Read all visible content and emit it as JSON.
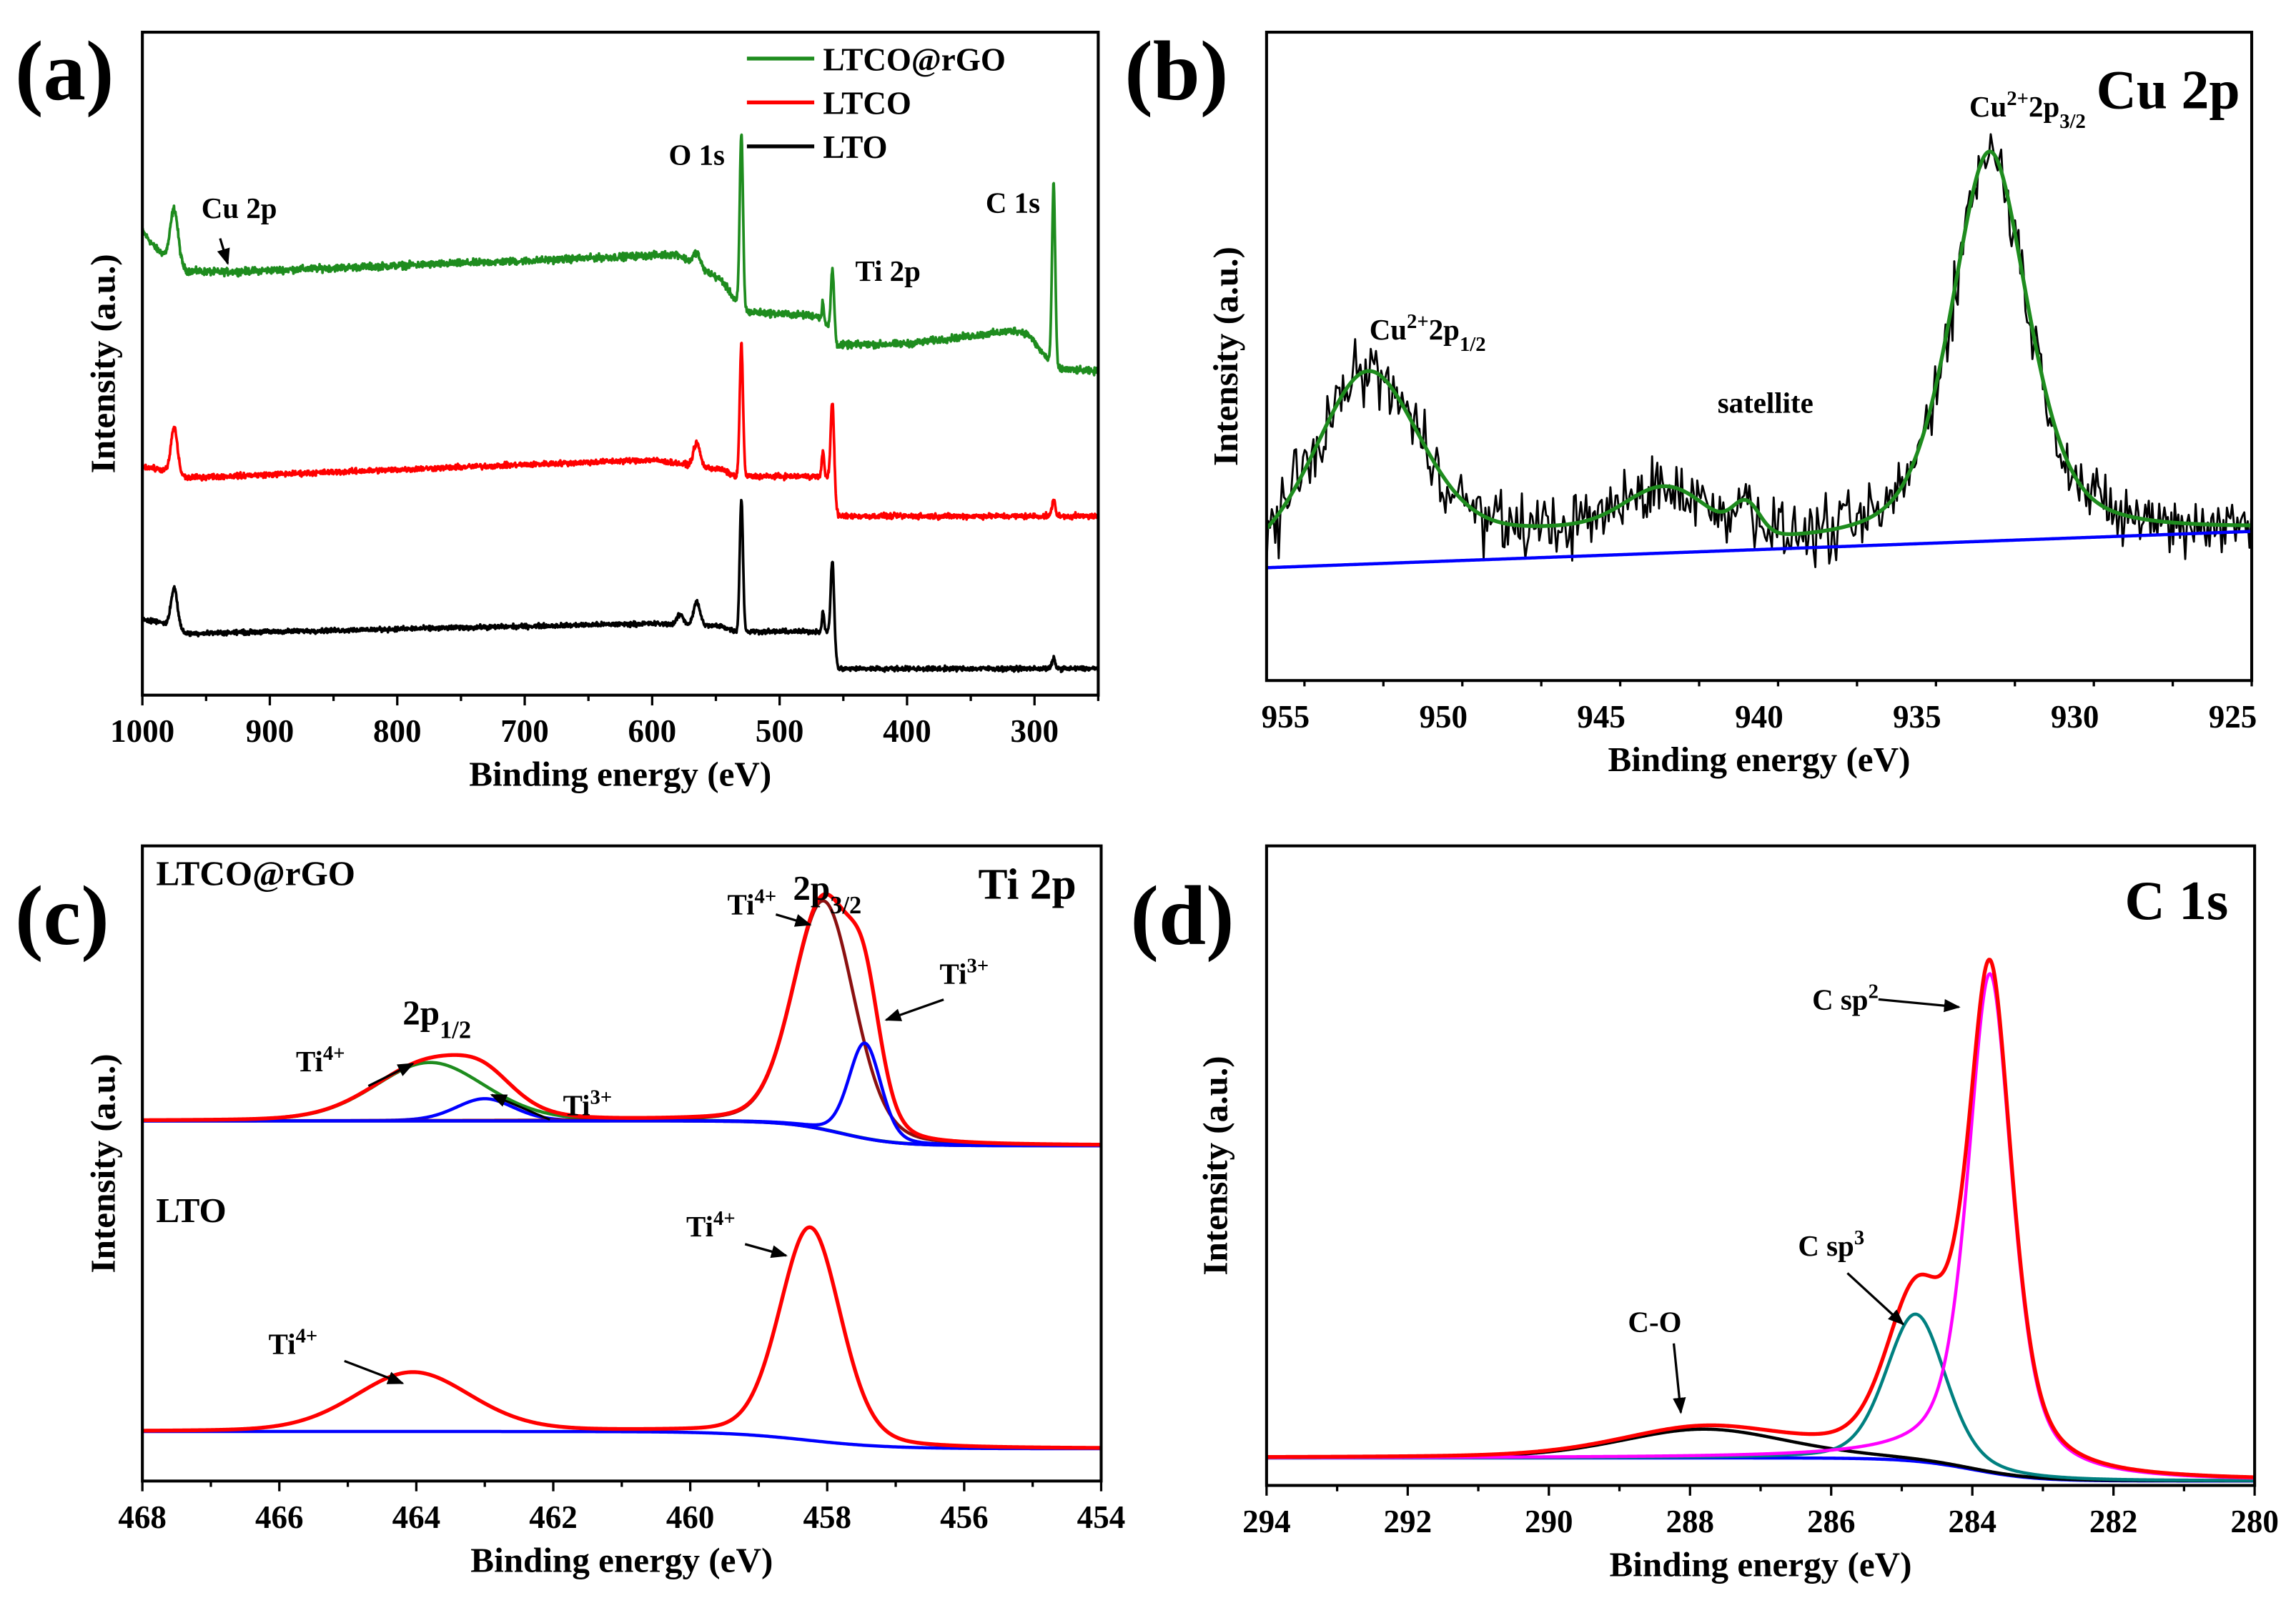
{
  "chart_data": [
    {
      "panel": "(a)",
      "type": "line",
      "title": "",
      "xlabel": "Binding energy (eV)",
      "ylabel": "Intensity (a.u.)",
      "xlim": [
        1000,
        250
      ],
      "ylim": [
        0,
        100
      ],
      "xticks": [
        1000,
        900,
        800,
        700,
        600,
        500,
        400,
        300
      ],
      "minor_step": 50,
      "legend": {
        "position": "top-right",
        "entries": [
          "LTCO@rGO",
          "LTCO",
          "LTO"
        ]
      },
      "survey_series": [
        {
          "name": "LTCO@rGO",
          "color": "#1e8c1e",
          "noise": 0.45,
          "baseline": [
            [
              1000,
              70
            ],
            [
              990,
              67.5
            ],
            [
              980,
              66
            ],
            [
              965,
              64
            ],
            [
              940,
              63.8
            ],
            [
              700,
              65.5
            ],
            [
              580,
              66.5
            ],
            [
              545,
              62.5
            ],
            [
              535,
              59.6
            ],
            [
              525,
              57.8
            ],
            [
              470,
              57.2
            ],
            [
              462,
              55.5
            ],
            [
              455,
              52.8
            ],
            [
              400,
              53
            ],
            [
              315,
              55
            ],
            [
              305,
              54.5
            ],
            [
              295,
              51.9
            ],
            [
              282,
              49.2
            ],
            [
              250,
              48.8
            ]
          ],
          "peaks": [
            [
              975,
              8,
              7
            ],
            [
              565,
              2,
              6
            ],
            [
              530,
              26,
              3
            ],
            [
              466,
              3,
              2
            ],
            [
              458.5,
              10,
              3
            ],
            [
              285,
              27,
              3
            ]
          ]
        },
        {
          "name": "LTCO",
          "color": "#ff0000",
          "noise": 0.35,
          "baseline": [
            [
              1000,
              34.5
            ],
            [
              985,
              34
            ],
            [
              965,
              32.8
            ],
            [
              600,
              35.5
            ],
            [
              545,
              34
            ],
            [
              535,
              33
            ],
            [
              460,
              33
            ],
            [
              454,
              27
            ],
            [
              250,
              27
            ]
          ],
          "peaks": [
            [
              975,
              7,
              6
            ],
            [
              565,
              3.5,
              6
            ],
            [
              530,
              20,
              3
            ],
            [
              466,
              4,
              2
            ],
            [
              458.5,
              12.7,
              3
            ],
            [
              285,
              2.5,
              3
            ]
          ]
        },
        {
          "name": "LTO",
          "color": "#000000",
          "noise": 0.3,
          "baseline": [
            [
              1000,
              11.5
            ],
            [
              985,
              11
            ],
            [
              965,
              9.3
            ],
            [
              600,
              10.8
            ],
            [
              545,
              10.4
            ],
            [
              535,
              9.6
            ],
            [
              460,
              9.6
            ],
            [
              454,
              4
            ],
            [
              250,
              4
            ]
          ],
          "peaks": [
            [
              975,
              6,
              6
            ],
            [
              578,
              1.5,
              6
            ],
            [
              565,
              3.5,
              6
            ],
            [
              530,
              20,
              3
            ],
            [
              466,
              3,
              2
            ],
            [
              458.5,
              12,
              3
            ],
            [
              285,
              1.5,
              3
            ]
          ]
        }
      ],
      "annotations": [
        {
          "parts": [
            [
              "Cu 2p",
              ""
            ]
          ],
          "x": 924,
          "y": 72
        },
        {
          "parts": [
            [
              "O 1s",
              ""
            ]
          ],
          "x": 565,
          "y": 80
        },
        {
          "parts": [
            [
              "Ti 2p",
              ""
            ]
          ],
          "x": 415,
          "y": 62.5
        },
        {
          "parts": [
            [
              "C 1s",
              ""
            ]
          ],
          "x": 317,
          "y": 72.8
        }
      ],
      "arrows": [
        {
          "from": [
            939,
            68.9
          ],
          "to": [
            933,
            65.1
          ]
        }
      ]
    },
    {
      "panel": "(b)",
      "type": "line",
      "title": "Cu 2p",
      "xlabel": "Binding energy (eV)",
      "ylabel": "Intensity (a.u.)",
      "xlim": [
        955.6,
        924.4
      ],
      "ylim": [
        0,
        100
      ],
      "xticks": [
        955,
        950,
        945,
        940,
        935,
        930,
        925
      ],
      "minor_step": 2.5,
      "groups": [
        {
          "background": {
            "type": "linear",
            "points": [
              [
                955.6,
                17.4
              ],
              [
                924.4,
                23
              ]
            ],
            "color": "#0000ff",
            "name": "Background"
          },
          "components": [
            {
              "name": "Cu2+ 2p3/2",
              "draw": false,
              "peaks": [
                [
                  932.7,
                  60,
                  2.9,
                  0.5
                ]
              ]
            },
            {
              "name": "Cu2+ 2p1/2",
              "draw": false,
              "peaks": [
                [
                  952.4,
                  29,
                  4.0,
                  0.3
                ]
              ]
            },
            {
              "name": "Satellite",
              "draw": false,
              "peaks": [
                [
                  946,
                  3.5,
                  8,
                  0
                ],
                [
                  942.9,
                  7,
                  3.0,
                  0
                ],
                [
                  940.4,
                  4.5,
                  1.0,
                  0
                ]
              ]
            }
          ],
          "raw": {
            "name": "Raw data",
            "color": "#000000",
            "noise": 4.2,
            "step": 0.055
          },
          "envelope": {
            "name": "Fit",
            "color": "#1e8c1e"
          }
        }
      ],
      "annotations": [
        {
          "parts": [
            [
              "Cu",
              ""
            ],
            [
              "2+",
              "sup"
            ],
            [
              "2p",
              ""
            ],
            [
              "3/2",
              "sub"
            ]
          ],
          "x": 931.5,
          "y": 87
        },
        {
          "parts": [
            [
              "Cu",
              ""
            ],
            [
              "2+",
              "sup"
            ],
            [
              "2p",
              ""
            ],
            [
              "1/2",
              "sub"
            ]
          ],
          "x": 950.5,
          "y": 52.6
        },
        {
          "parts": [
            [
              "satellite",
              ""
            ]
          ],
          "x": 939.8,
          "y": 41.3
        }
      ],
      "arrows": []
    },
    {
      "panel": "(c)",
      "type": "line",
      "title": "Ti 2p",
      "xlabel": "Binding energy (eV)",
      "ylabel": "Intensity (a.u.)",
      "xlim": [
        468,
        454
      ],
      "ylim": [
        0,
        100
      ],
      "xticks": [
        468,
        466,
        464,
        462,
        460,
        458,
        456,
        454
      ],
      "minor_step": 1,
      "groups": [
        {
          "label": "LTCO@rGO",
          "background": {
            "type": "sigmoid",
            "high": 56.7,
            "low": 52.8,
            "center": 457.8,
            "width": 0.4,
            "color": "#000080",
            "name": "Background"
          },
          "components": [
            {
              "name": "Ti4+ 2p1/2",
              "draw": true,
              "color": "#1e8c1e",
              "peaks": [
                [
                  463.8,
                  9.2,
                  1.9,
                  0.2
                ]
              ]
            },
            {
              "name": "Ti3+ 2p1/2",
              "draw": true,
              "color": "#0000ff",
              "peaks": [
                [
                  463.0,
                  3.5,
                  1.0,
                  0.2
                ]
              ]
            },
            {
              "name": "Ti4+ 2p3/2",
              "draw": true,
              "color": "#8b1010",
              "peaks": [
                [
                  458.05,
                  36,
                  1.05,
                  0.2
                ]
              ]
            },
            {
              "name": "Ti3+ 2p3/2",
              "draw": true,
              "color": "#0000ff",
              "peaks": [
                [
                  457.45,
                  15,
                  0.55,
                  0.2
                ]
              ]
            }
          ],
          "envelope": {
            "name": "Envelope",
            "color": "#ff0000"
          }
        },
        {
          "label": "LTO",
          "background": {
            "type": "sigmoid",
            "high": 7.8,
            "low": 5.1,
            "center": 458.3,
            "width": 0.6,
            "color": "#0000ff",
            "name": "Background"
          },
          "components": [
            {
              "name": "Ti4+ 2p3/2",
              "draw": false,
              "peaks": [
                [
                  458.25,
                  33.5,
                  1.05,
                  0.2
                ]
              ]
            },
            {
              "name": "Ti4+ 2p1/2",
              "draw": false,
              "peaks": [
                [
                  464.05,
                  9.3,
                  2.0,
                  0.2
                ]
              ]
            }
          ],
          "envelope": {
            "name": "Envelope",
            "color": "#ff0000"
          }
        }
      ],
      "annotations": [
        {
          "parts": [
            [
              "LTCO@rGO",
              ""
            ]
          ],
          "x": 467.8,
          "y": 93.8,
          "anchor": "start",
          "size": 24
        },
        {
          "parts": [
            [
              "2p",
              ""
            ],
            [
              "3/2",
              "sub"
            ]
          ],
          "x": 458.0,
          "y": 91.5,
          "size": 24
        },
        {
          "parts": [
            [
              "Ti",
              ""
            ],
            [
              "4+",
              "sup"
            ]
          ],
          "x": 459.1,
          "y": 89.2
        },
        {
          "parts": [
            [
              "Ti",
              ""
            ],
            [
              "3+",
              "sup"
            ]
          ],
          "x": 456.0,
          "y": 78.3
        },
        {
          "parts": [
            [
              "2p",
              ""
            ],
            [
              "1/2",
              "sub"
            ]
          ],
          "x": 463.7,
          "y": 71.9,
          "size": 24
        },
        {
          "parts": [
            [
              "Ti",
              ""
            ],
            [
              "4+",
              "sup"
            ]
          ],
          "x": 465.4,
          "y": 64.5
        },
        {
          "parts": [
            [
              "Ti",
              ""
            ],
            [
              "3+",
              "sup"
            ]
          ],
          "x": 461.5,
          "y": 57.6
        },
        {
          "parts": [
            [
              "LTO",
              ""
            ]
          ],
          "x": 467.8,
          "y": 40.8,
          "anchor": "start",
          "size": 24
        },
        {
          "parts": [
            [
              "Ti",
              ""
            ],
            [
              "4+",
              "sup"
            ]
          ],
          "x": 459.7,
          "y": 38.5
        },
        {
          "parts": [
            [
              "Ti",
              ""
            ],
            [
              "4+",
              "sup"
            ]
          ],
          "x": 465.8,
          "y": 20
        }
      ],
      "arrows": [
        {
          "from": [
            458.75,
            89.2
          ],
          "to": [
            458.25,
            87.6
          ]
        },
        {
          "from": [
            456.3,
            75.8
          ],
          "to": [
            457.14,
            72.6
          ]
        },
        {
          "from": [
            464.7,
            62.2
          ],
          "to": [
            464.05,
            65.7
          ]
        },
        {
          "from": [
            462.05,
            56.9
          ],
          "to": [
            462.9,
            60.8
          ]
        },
        {
          "from": [
            459.2,
            37.3
          ],
          "to": [
            458.6,
            35.5
          ]
        },
        {
          "from": [
            465.05,
            18.9
          ],
          "to": [
            464.2,
            15.4
          ]
        }
      ]
    },
    {
      "panel": "(d)",
      "type": "line",
      "title": "C 1s",
      "xlabel": "Binding energy (eV)",
      "ylabel": "Intensity (a.u.)",
      "xlim": [
        294,
        280
      ],
      "ylim": [
        0,
        100
      ],
      "xticks": [
        294,
        292,
        290,
        288,
        286,
        284,
        282,
        280
      ],
      "minor_step": 1,
      "groups": [
        {
          "background": {
            "type": "sigmoid",
            "high": 4.3,
            "low": 0.7,
            "center": 284.0,
            "width": 0.45,
            "color": "#0000ff",
            "name": "Background"
          },
          "components": [
            {
              "name": "C-O",
              "draw": true,
              "color": "#000000",
              "peaks": [
                [
                  287.8,
                  4.5,
                  2.8,
                  0.3
                ]
              ]
            },
            {
              "name": "C sp3",
              "draw": true,
              "color": "#008080",
              "peaks": [
                [
                  284.8,
                  23,
                  1.0,
                  0.3
                ]
              ]
            },
            {
              "name": "C sp2",
              "draw": true,
              "color": "#ff00ff",
              "peaks": [
                [
                  283.75,
                  78,
                  0.75,
                  0.6
                ]
              ]
            }
          ],
          "envelope": {
            "name": "Envelope",
            "color": "#ff0000"
          }
        }
      ],
      "annotations": [
        {
          "parts": [
            [
              "C sp",
              ""
            ],
            [
              "2",
              "sup"
            ]
          ],
          "x": 285.8,
          "y": 74.4
        },
        {
          "parts": [
            [
              "C sp",
              ""
            ],
            [
              "3",
              "sup"
            ]
          ],
          "x": 286.0,
          "y": 35.9
        },
        {
          "parts": [
            [
              "C-O",
              ""
            ]
          ],
          "x": 288.5,
          "y": 24
        }
      ],
      "arrows": [
        {
          "from": [
            285.33,
            76
          ],
          "to": [
            284.19,
            74.8
          ]
        },
        {
          "from": [
            285.77,
            33.2
          ],
          "to": [
            284.98,
            25.2
          ]
        },
        {
          "from": [
            288.23,
            22.2
          ],
          "to": [
            288.13,
            11.4
          ]
        }
      ]
    }
  ]
}
